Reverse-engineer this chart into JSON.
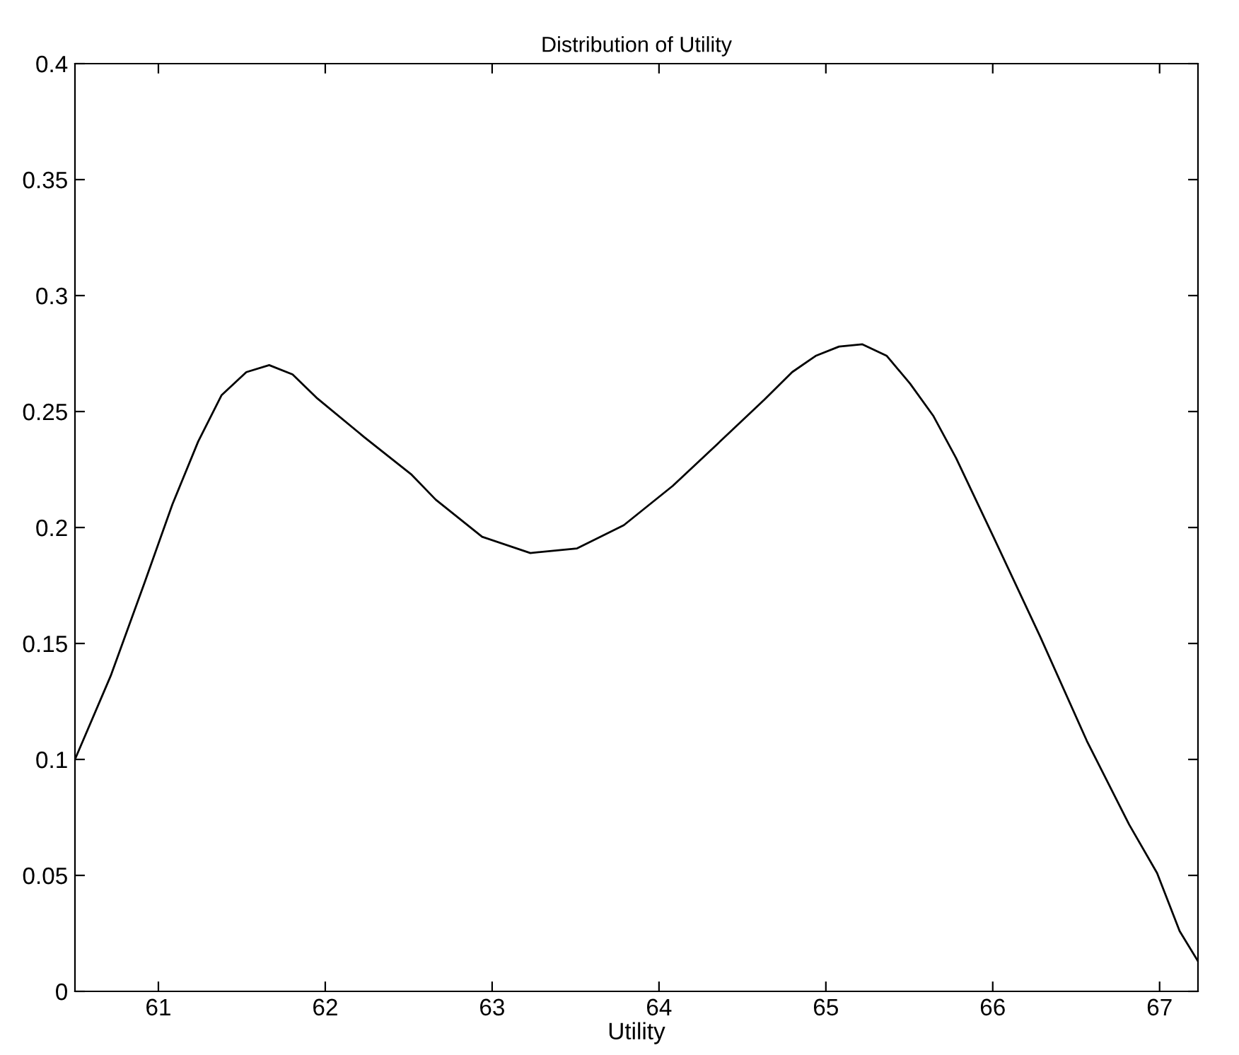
{
  "chart_data": {
    "type": "line",
    "title": "Distribution of Utility",
    "xlabel": "Utility",
    "x": [
      60.5,
      60.714,
      60.916,
      61.084,
      61.238,
      61.378,
      61.527,
      61.664,
      61.804,
      61.947,
      62.233,
      62.514,
      62.662,
      62.94,
      63.229,
      63.509,
      63.789,
      64.083,
      64.35,
      64.63,
      64.798,
      64.939,
      65.079,
      65.219,
      65.365,
      65.505,
      65.645,
      65.78,
      66.004,
      66.284,
      66.564,
      66.817,
      66.985,
      67.12,
      67.23
    ],
    "series": [
      {
        "color": "#000000",
        "values": [
          0.1,
          0.136,
          0.176,
          0.21,
          0.237,
          0.257,
          0.267,
          0.27,
          0.266,
          0.256,
          0.239,
          0.223,
          0.212,
          0.196,
          0.189,
          0.191,
          0.201,
          0.218,
          0.236,
          0.255,
          0.267,
          0.274,
          0.278,
          0.279,
          0.274,
          0.262,
          0.248,
          0.23,
          0.196,
          0.153,
          0.108,
          0.072,
          0.051,
          0.026,
          0.013
        ]
      }
    ],
    "xlim": [
      60.5,
      67.23
    ],
    "xticks": [
      61,
      62,
      63,
      64,
      65,
      66,
      67
    ],
    "ylim": [
      0,
      0.4
    ],
    "yticks": [
      0,
      0.05,
      0.1,
      0.15,
      0.2,
      0.25,
      0.3,
      0.35,
      0.4
    ],
    "grid": false,
    "legend": false,
    "marker": "none",
    "line_style": "solid"
  }
}
